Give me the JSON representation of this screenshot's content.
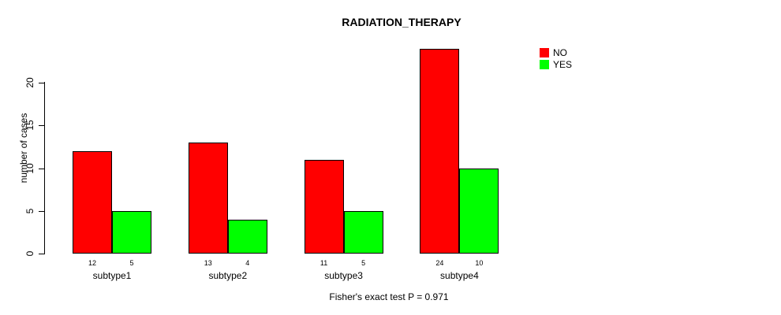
{
  "title": "RADIATION_THERAPY",
  "footer_note": "Fisher's exact test P = 0.971",
  "colors": {
    "no": "#ff0000",
    "yes": "#00ff00",
    "axis": "#000000",
    "background": "#ffffff"
  },
  "chart_data": {
    "type": "bar",
    "title": "RADIATION_THERAPY",
    "categories": [
      "subtype1",
      "subtype2",
      "subtype3",
      "subtype4"
    ],
    "series": [
      {
        "name": "NO",
        "color": "#ff0000",
        "values": [
          12,
          13,
          11,
          24
        ]
      },
      {
        "name": "YES",
        "color": "#00ff00",
        "values": [
          5,
          4,
          5,
          10
        ]
      }
    ],
    "xlabel": "",
    "ylabel": "number of cases",
    "ylim": [
      0,
      24
    ],
    "yticks": [
      0,
      5,
      10,
      15,
      20
    ],
    "grid": false,
    "legend_position": "top-right",
    "bar_value_labels_shown": true,
    "annotation": "Fisher's exact test P = 0.971"
  }
}
